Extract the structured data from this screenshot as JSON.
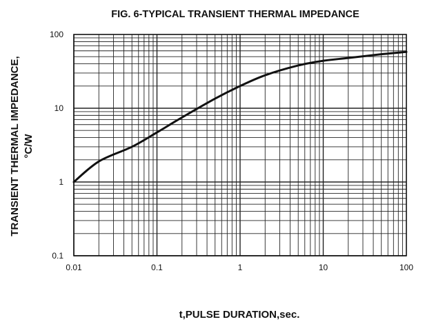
{
  "chart_data": {
    "type": "line",
    "title": "FIG. 6-TYPICAL TRANSIENT THERMAL IMPEDANCE",
    "xlabel": "t,PULSE DURATION,sec.",
    "ylabel_line1": "TRANSIENT THERMAL IMPEDANCE,",
    "ylabel_line2": "°C/W",
    "x_scale": "log",
    "y_scale": "log",
    "xlim": [
      0.01,
      100
    ],
    "ylim": [
      0.1,
      100
    ],
    "grid": true,
    "x_ticks": [
      {
        "value": 0.01,
        "label": "0.01"
      },
      {
        "value": 0.1,
        "label": "0.1"
      },
      {
        "value": 1,
        "label": "1"
      },
      {
        "value": 10,
        "label": "10"
      },
      {
        "value": 100,
        "label": "100"
      }
    ],
    "y_ticks": [
      {
        "value": 0.1,
        "label": "0.1"
      },
      {
        "value": 1,
        "label": "1"
      },
      {
        "value": 10,
        "label": "10"
      },
      {
        "value": 100,
        "label": "100"
      }
    ],
    "series": [
      {
        "color": "#111111",
        "x": [
          0.01,
          0.02,
          0.05,
          0.1,
          0.2,
          0.5,
          1,
          2,
          5,
          10,
          20,
          50,
          100
        ],
        "y": [
          1.0,
          1.9,
          3.0,
          4.7,
          7.5,
          13.5,
          20,
          28,
          38,
          44,
          48,
          54,
          58
        ]
      }
    ]
  }
}
